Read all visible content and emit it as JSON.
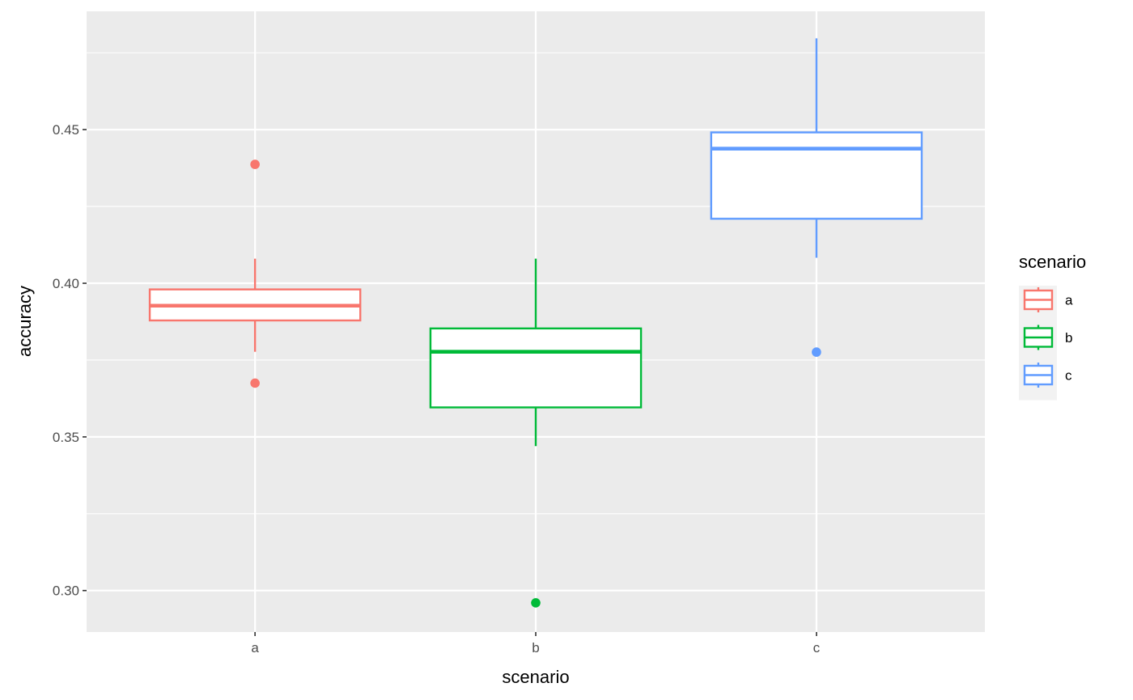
{
  "chart_data": {
    "type": "boxplot",
    "xlabel": "scenario",
    "ylabel": "accuracy",
    "categories": [
      "a",
      "b",
      "c"
    ],
    "ylim": [
      0.2865,
      0.4885
    ],
    "yticks": [
      0.3,
      0.35,
      0.4,
      0.45
    ],
    "ytick_labels": [
      "0.30",
      "0.35",
      "0.40",
      "0.45"
    ],
    "grid": true,
    "legend": {
      "title": "scenario",
      "position": "right",
      "entries": [
        "a",
        "b",
        "c"
      ]
    },
    "colors": {
      "a": "#F8766D",
      "b": "#00BA38",
      "c": "#619CFF"
    },
    "panel_background": "#EBEBEB",
    "series": [
      {
        "name": "a",
        "whisker_low": 0.3777,
        "q1": 0.3879,
        "median": 0.3927,
        "q3": 0.398,
        "whisker_high": 0.408,
        "outliers": [
          0.4387,
          0.3675
        ]
      },
      {
        "name": "b",
        "whisker_low": 0.347,
        "q1": 0.3596,
        "median": 0.3777,
        "q3": 0.3853,
        "whisker_high": 0.408,
        "outliers": [
          0.296
        ]
      },
      {
        "name": "c",
        "whisker_low": 0.4083,
        "q1": 0.421,
        "median": 0.4438,
        "q3": 0.4491,
        "whisker_high": 0.4797,
        "outliers": [
          0.3776
        ]
      }
    ]
  }
}
